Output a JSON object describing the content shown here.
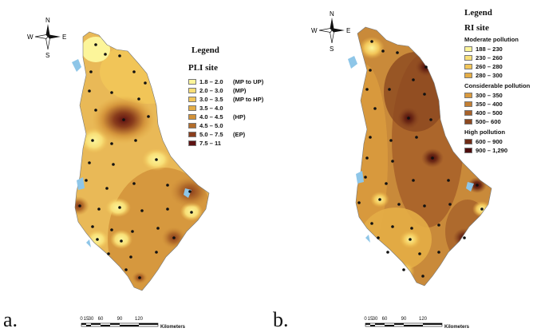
{
  "panel_a": {
    "letter": "a.",
    "compass": {
      "n": "N",
      "s": "S",
      "e": "E",
      "w": "W"
    },
    "legend": {
      "title": "Legend",
      "subtitle": "PLI site",
      "items": [
        {
          "range": "1.8 – 2.0",
          "note": "(MP to UP)",
          "color": "#fcf59a"
        },
        {
          "range": "2.0 – 3.0",
          "note": "(MP)",
          "color": "#f8df77"
        },
        {
          "range": "3.0 – 3.5",
          "note": "(MP to HP)",
          "color": "#f2c659"
        },
        {
          "range": "3.5 – 4.0",
          "note": "",
          "color": "#e4ad46"
        },
        {
          "range": "4.0 – 4.5",
          "note": "(HP)",
          "color": "#d2923a"
        },
        {
          "range": "4.5 – 5.0",
          "note": "",
          "color": "#b36d2b"
        },
        {
          "range": "5.0 – 7.5",
          "note": "(EP)",
          "color": "#8a3d1c"
        },
        {
          "range": "7.5 – 11",
          "note": "",
          "color": "#5e1212"
        }
      ]
    },
    "scale": {
      "ticks": [
        "0",
        "15",
        "30",
        "60",
        "90",
        "120"
      ],
      "unit": "Kilometers"
    }
  },
  "panel_b": {
    "letter": "b.",
    "compass": {
      "n": "N",
      "s": "S",
      "e": "E",
      "w": "W"
    },
    "legend": {
      "title": "Legend",
      "subtitle": "RI site",
      "groups": [
        {
          "label": "Moderate pollution",
          "items": [
            {
              "range": "188 – 230",
              "color": "#fcf59a"
            },
            {
              "range": "230 – 260",
              "color": "#f8df77"
            },
            {
              "range": "260 – 280",
              "color": "#f2c659"
            },
            {
              "range": "280 – 300",
              "color": "#e4ad46"
            }
          ]
        },
        {
          "label": "Considerable pollution",
          "items": [
            {
              "range": "300 – 350",
              "color": "#d99a3e"
            },
            {
              "range": "350 – 400",
              "color": "#c47f33"
            },
            {
              "range": "400 – 500",
              "color": "#a8622a"
            },
            {
              "range": "500– 600",
              "color": "#8c4820"
            }
          ]
        },
        {
          "label": "High pollution",
          "items": [
            {
              "range": "600 – 900",
              "color": "#6e2b16"
            },
            {
              "range": "900 – 1,290",
              "color": "#4d0d0d"
            }
          ]
        }
      ]
    },
    "scale": {
      "ticks": [
        "0",
        "15",
        "30",
        "60",
        "90",
        "120"
      ],
      "unit": "Kilometers"
    }
  },
  "colors": {
    "water": "#8ec6e8",
    "site_marker": "#111111"
  }
}
